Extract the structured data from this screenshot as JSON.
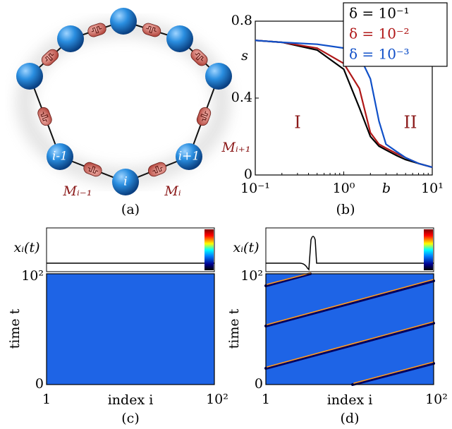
{
  "diagram": {
    "label": "(a)",
    "nodes": [
      "i-1",
      "i",
      "i+1"
    ],
    "links": [
      "Mᵢ₋₁",
      "Mᵢ",
      "Mᵢ₊₁"
    ]
  },
  "chart_data": [
    {
      "type": "line",
      "label": "(b)",
      "xlabel": "b",
      "ylabel": "s",
      "annotations": [
        "I",
        "II"
      ],
      "x": [
        0.1,
        0.2,
        0.5,
        1,
        1.5,
        2,
        2.5,
        3,
        4,
        5,
        7,
        10
      ],
      "xlog": true,
      "xlim": [
        0.1,
        10
      ],
      "xticks": [
        {
          "value": 0.1,
          "label": "10⁻¹"
        },
        {
          "value": 1,
          "label": "10⁰"
        },
        {
          "value": 10,
          "label": "10¹"
        }
      ],
      "ylim": [
        0,
        0.8
      ],
      "yticks": [
        0,
        0.4,
        0.8
      ],
      "legend": "upper right",
      "series": [
        {
          "name": "δ = 10⁻¹",
          "color": "#000000",
          "values": [
            0.7,
            0.69,
            0.65,
            0.55,
            0.35,
            0.2,
            0.15,
            0.13,
            0.1,
            0.08,
            0.06,
            0.04
          ]
        },
        {
          "name": "δ = 10⁻²",
          "color": "#b01818",
          "values": [
            0.7,
            0.69,
            0.66,
            0.58,
            0.45,
            0.22,
            0.16,
            0.14,
            0.11,
            0.09,
            0.06,
            0.04
          ]
        },
        {
          "name": "δ = 10⁻³",
          "color": "#1050c8",
          "values": [
            0.7,
            0.69,
            0.68,
            0.66,
            0.62,
            0.5,
            0.28,
            0.16,
            0.12,
            0.09,
            0.06,
            0.04
          ]
        }
      ]
    },
    {
      "type": "heatmap",
      "label": "(c)",
      "xlabel": "index i",
      "ylabel": "time t",
      "inset_label": "xᵢ(t)",
      "xlim": [
        1,
        100
      ],
      "xticks": [
        1,
        {
          "value": 100,
          "label": "10²"
        }
      ],
      "ylim": [
        0,
        100
      ],
      "yticks": [
        0,
        {
          "value": 100,
          "label": "10²"
        }
      ]
    },
    {
      "type": "heatmap",
      "label": "(d)",
      "xlabel": "index i",
      "ylabel": "time t",
      "inset_label": "xᵢ(t)",
      "xlim": [
        1,
        100
      ],
      "xticks": [
        1,
        {
          "value": 100,
          "label": "10²"
        }
      ],
      "ylim": [
        0,
        100
      ],
      "yticks": [
        0,
        {
          "value": 100,
          "label": "10²"
        }
      ]
    }
  ]
}
